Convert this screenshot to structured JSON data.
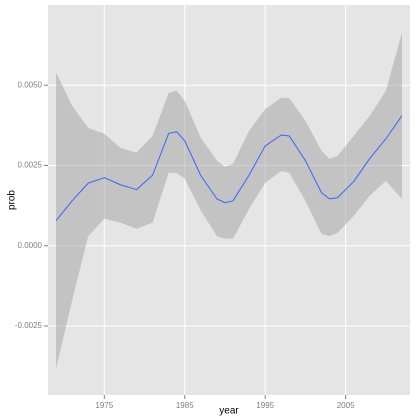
{
  "chart_data": {
    "type": "line",
    "x_label": "year",
    "y_label": "prob",
    "x": [
      1969,
      1971,
      1973,
      1975,
      1977,
      1979,
      1981,
      1983,
      1984,
      1985,
      1987,
      1989,
      1990,
      1991,
      1993,
      1995,
      1997,
      1998,
      2000,
      2002,
      2003,
      2004,
      2006,
      2008,
      2010,
      2012
    ],
    "values": [
      0.00078,
      0.0014,
      0.00195,
      0.00212,
      0.0019,
      0.00175,
      0.0022,
      0.0035,
      0.00355,
      0.00327,
      0.00218,
      0.00146,
      0.00134,
      0.0014,
      0.0022,
      0.00311,
      0.00345,
      0.00342,
      0.00265,
      0.00165,
      0.00146,
      0.0015,
      0.002,
      0.00272,
      0.00333,
      0.00405
    ],
    "upper": [
      0.0054,
      0.00436,
      0.00367,
      0.00349,
      0.00305,
      0.0029,
      0.00342,
      0.00476,
      0.00483,
      0.00451,
      0.00336,
      0.00265,
      0.00246,
      0.00255,
      0.00358,
      0.00426,
      0.00461,
      0.0046,
      0.00389,
      0.00296,
      0.00271,
      0.0028,
      0.00342,
      0.00405,
      0.00483,
      0.00663
    ],
    "lower": [
      -0.00383,
      -0.00171,
      0.0003,
      0.00084,
      0.00072,
      0.00053,
      0.00072,
      0.00227,
      0.00227,
      0.00209,
      0.00109,
      0.0003,
      0.00022,
      0.00022,
      0.00115,
      0.00196,
      0.00233,
      0.00227,
      0.0014,
      0.00037,
      0.0003,
      0.0004,
      0.00093,
      0.00156,
      0.00202,
      0.00146
    ],
    "color": "#3366ff",
    "band_color": "#999999",
    "grid": true,
    "xlim": [
      1968,
      2013
    ],
    "xticks": [
      1975,
      1985,
      1995,
      2005
    ],
    "ylim": [
      -0.00465,
      0.0075
    ],
    "yticks": [
      -0.0025,
      {
        "value": 0,
        "label": "0.0000"
      },
      0.0025,
      {
        "value": 0.005,
        "label": "0.0050"
      }
    ]
  }
}
